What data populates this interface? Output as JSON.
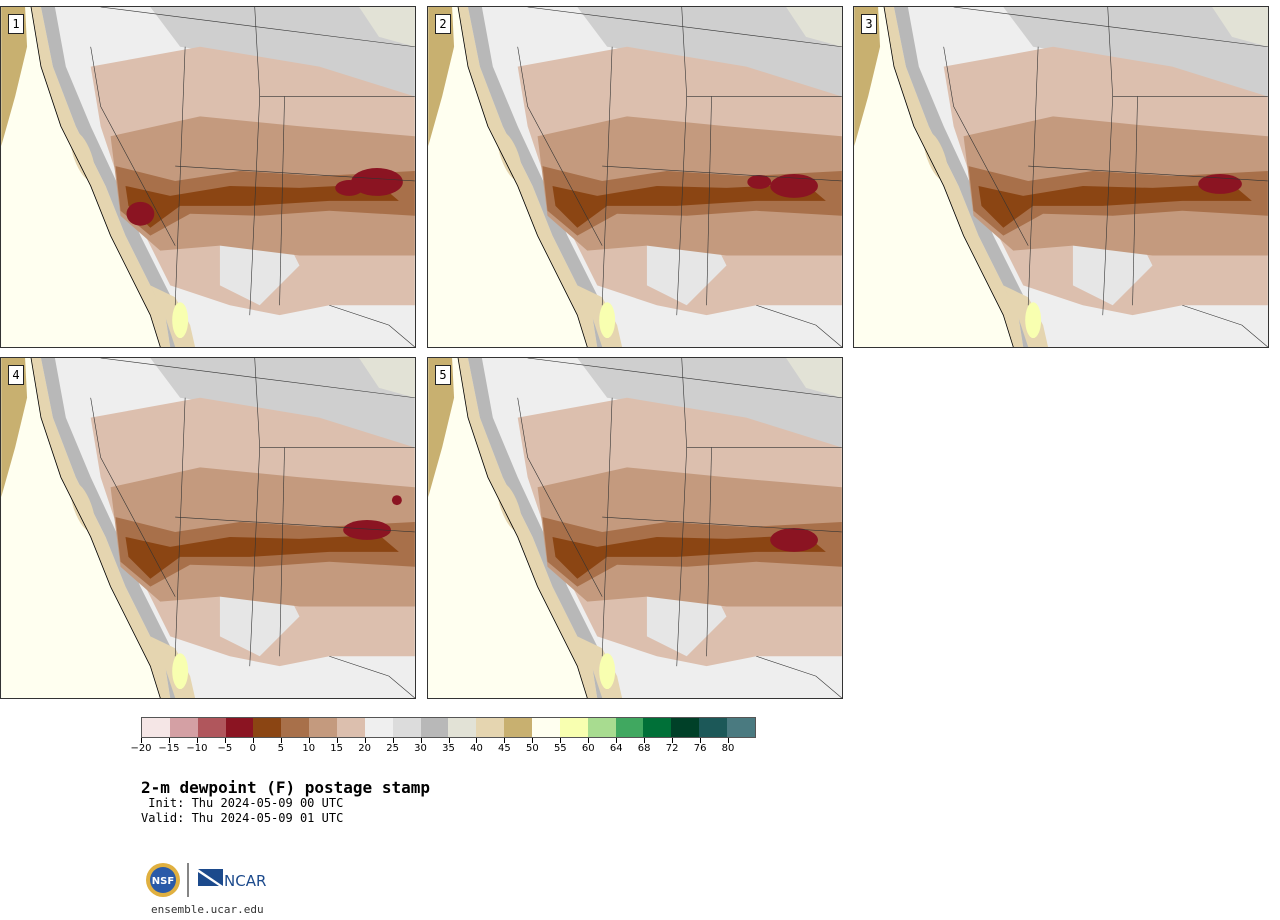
{
  "panels": [
    {
      "number": "1"
    },
    {
      "number": "2"
    },
    {
      "number": "3"
    },
    {
      "number": "4"
    },
    {
      "number": "5"
    }
  ],
  "colorbar": {
    "colors": [
      "#f5e6e6",
      "#d4a0a4",
      "#b0565c",
      "#8b1422",
      "#8b4513",
      "#a8704a",
      "#c49a7e",
      "#dcbfae",
      "#efefef",
      "#dcdcdc",
      "#b8b8b8",
      "#e2e2d6",
      "#e5d5b0",
      "#c8b070",
      "#fffff0",
      "#f8ffb0",
      "#a8dc90",
      "#40a860",
      "#007038",
      "#004028",
      "#1c5858",
      "#4a7a80"
    ],
    "ticks": [
      "−20",
      "−15",
      "−10",
      "−5",
      "0",
      "5",
      "10",
      "15",
      "20",
      "25",
      "30",
      "35",
      "40",
      "45",
      "50",
      "55",
      "60",
      "64",
      "68",
      "72",
      "76",
      "80"
    ]
  },
  "title": "2-m dewpoint (F) postage stamp",
  "init_line": " Init: Thu 2024-05-09 00 UTC",
  "valid_line": "Valid: Thu 2024-05-09 01 UTC",
  "logo": {
    "nsf": "NSF",
    "ncar": "NCAR"
  },
  "footer": "ensemble.ucar.edu"
}
